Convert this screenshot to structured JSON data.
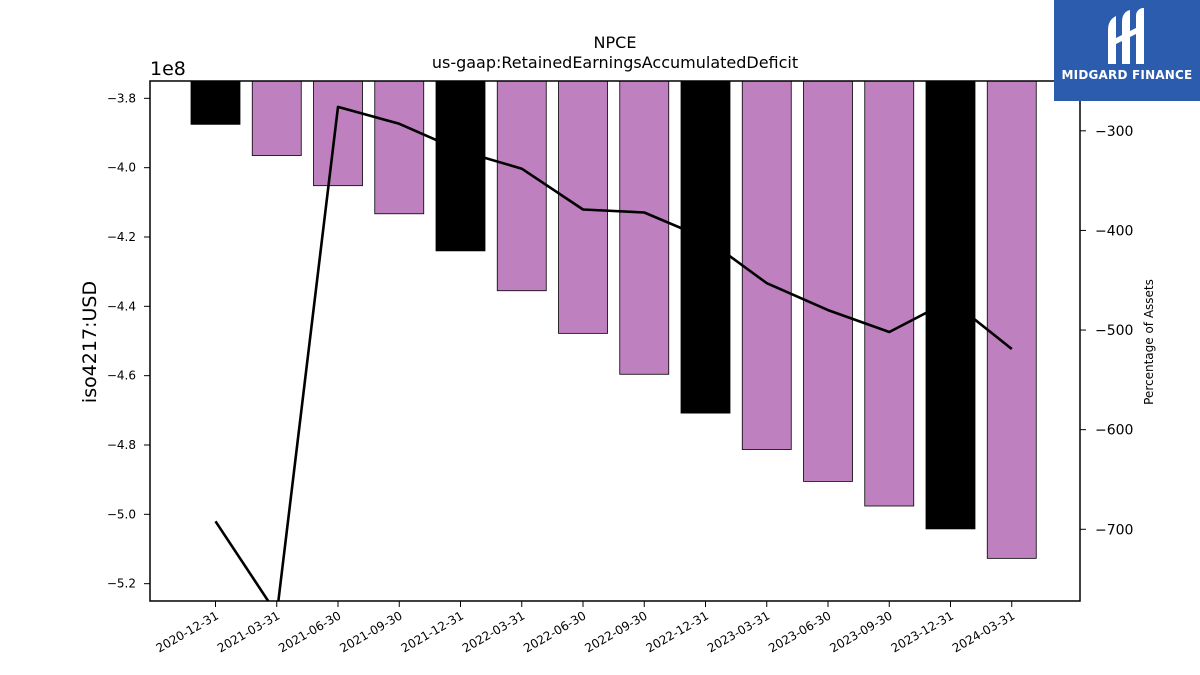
{
  "chart_data": {
    "type": "bar",
    "title": "NPCE",
    "subtitle": "us-gaap:RetainedEarningsAccumulatedDeficit",
    "ylabel": "iso4217:USD",
    "y2label": "Percentage of Assets",
    "offset_label": "1e8",
    "categories": [
      "2020-12-31",
      "2021-03-31",
      "2021-06-30",
      "2021-09-30",
      "2021-12-31",
      "2022-03-31",
      "2022-06-30",
      "2022-09-30",
      "2022-12-31",
      "2023-03-31",
      "2023-06-30",
      "2023-09-30",
      "2023-12-31",
      "2024-03-31"
    ],
    "series": [
      {
        "values": [
          -387500000,
          -396500000,
          -405200000,
          -413300000,
          -424000000,
          -435500000,
          -447800000,
          -459600000,
          -470800000,
          -481300000,
          -490500000,
          -497600000,
          -504200000,
          -512700000
        ],
        "bar_colors": [
          "#000000",
          "#bf80bf",
          "#bf80bf",
          "#bf80bf",
          "#000000",
          "#bf80bf",
          "#bf80bf",
          "#bf80bf",
          "#000000",
          "#bf80bf",
          "#bf80bf",
          "#bf80bf",
          "#000000",
          "#bf80bf"
        ]
      },
      {
        "axis": "right",
        "type": "line",
        "color": "#000000",
        "values": [
          -692,
          -785,
          -276,
          -293,
          -320,
          -338,
          -379,
          -382,
          -408,
          -453,
          -480,
          -502,
          -470,
          -519
        ]
      }
    ],
    "y_ticks": [
      "−3.8",
      "−4.0",
      "−4.2",
      "−4.4",
      "−4.6",
      "−4.8",
      "−5.0",
      "−5.2"
    ],
    "y_tick_values": [
      -3.8,
      -4.0,
      -4.2,
      -4.4,
      -4.6,
      -4.8,
      -5.0,
      -5.2
    ],
    "y2_ticks": [
      "−300",
      "−400",
      "−500",
      "−600",
      "−700"
    ],
    "y2_tick_values": [
      -300,
      -400,
      -500,
      -600,
      -700
    ],
    "ylim": [
      -525000000,
      -375000000
    ],
    "y2lim": [
      -772,
      -250
    ],
    "grid": false
  },
  "logo": {
    "text": "MIDGARD FINANCE",
    "color": "#2b5cad"
  }
}
